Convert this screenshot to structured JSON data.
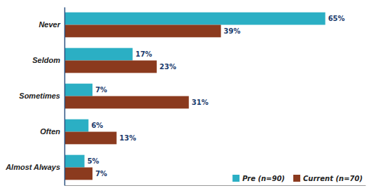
{
  "chart_data": {
    "type": "bar",
    "orientation": "horizontal",
    "categories": [
      "Almost Always",
      "Often",
      "Sometimes",
      "Seldom",
      "Never"
    ],
    "series": [
      {
        "name": "Pre (n=90)",
        "color": "#2BAFC4",
        "values": [
          5,
          6,
          7,
          17,
          65
        ],
        "value_labels": [
          "5%",
          "6%",
          "7%",
          "17%",
          "65%"
        ]
      },
      {
        "name": "Current (n=70)",
        "color": "#8B3A1E",
        "values": [
          7,
          13,
          31,
          23,
          39
        ],
        "value_labels": [
          "7%",
          "13%",
          "31%",
          "23%",
          "39%"
        ]
      }
    ],
    "xlim": [
      0,
      75
    ],
    "data_labels": true,
    "tick_labels": "y",
    "legend": "lower right"
  }
}
